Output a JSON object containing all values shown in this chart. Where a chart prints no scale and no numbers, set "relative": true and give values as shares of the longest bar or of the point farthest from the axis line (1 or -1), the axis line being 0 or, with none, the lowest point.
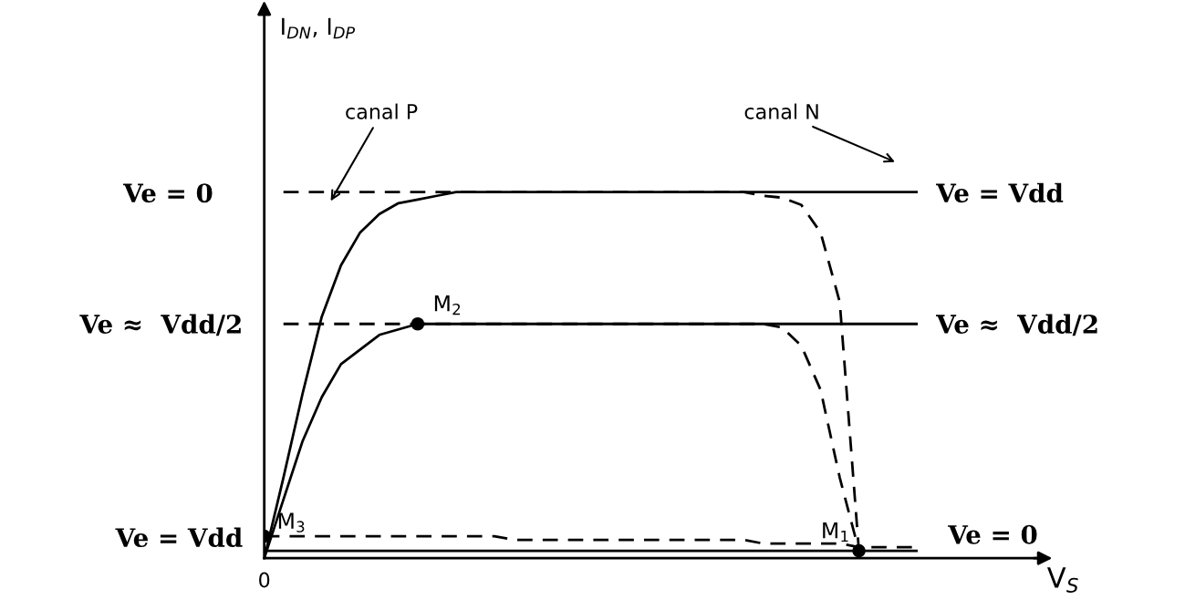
{
  "chart_data": {
    "type": "line",
    "relative": true,
    "xlabel": "V$_{S}$",
    "legend": false,
    "categories": [
      null,
      null,
      null,
      null,
      null,
      null,
      null,
      null,
      null,
      null,
      null,
      null,
      null,
      null,
      null,
      null,
      null,
      null,
      null,
      null,
      null,
      null,
      null,
      null,
      null,
      null,
      null,
      null,
      null,
      null,
      null,
      null,
      null,
      null,
      null,
      null,
      null,
      null,
      null,
      null,
      null
    ],
    "series": [
      {
        "color": "#000000",
        "line_style": "solid",
        "values": [
          0,
          0.22,
          0.45,
          0.66,
          0.8,
          0.89,
          0.94,
          0.97,
          0.98,
          0.99,
          1,
          1,
          1,
          1,
          1,
          1,
          1,
          1,
          1,
          1,
          1,
          1,
          1,
          1,
          1,
          1,
          1,
          1,
          1,
          1,
          1,
          1,
          1,
          1,
          1,
          null,
          null,
          null,
          null,
          null,
          null
        ]
      },
      {
        "color": "#000000",
        "line_style": "dashed",
        "values": [
          null,
          1,
          1,
          1,
          1,
          1,
          1,
          1,
          1,
          1,
          1,
          1,
          1,
          1,
          1,
          1,
          1,
          1,
          1,
          1,
          1,
          1,
          1,
          1,
          1,
          1,
          0.99,
          0.985,
          0.965,
          0.89,
          0.7,
          0.02,
          null,
          null,
          null,
          null,
          null,
          null,
          null,
          null,
          null
        ]
      },
      {
        "color": "#000000",
        "line_style": "solid",
        "values": [
          0,
          0.16,
          0.32,
          0.44,
          0.53,
          0.57,
          0.61,
          0.625,
          0.64,
          0.64,
          0.64,
          0.64,
          0.64,
          0.64,
          0.64,
          0.64,
          0.64,
          0.64,
          0.64,
          0.64,
          0.64,
          0.64,
          0.64,
          0.64,
          0.64,
          0.64,
          0.64,
          0.64,
          0.64,
          0.64,
          0.64,
          0.64,
          0.64,
          0.64,
          0.64,
          null,
          null,
          null,
          null,
          null,
          null
        ]
      },
      {
        "color": "#000000",
        "line_style": "dashed",
        "values": [
          null,
          0.64,
          0.64,
          0.64,
          0.64,
          0.64,
          0.64,
          0.64,
          0.64,
          0.64,
          0.64,
          0.64,
          0.64,
          0.64,
          0.64,
          0.64,
          0.64,
          0.64,
          0.64,
          0.64,
          0.64,
          0.64,
          0.64,
          0.64,
          0.64,
          0.64,
          0.64,
          0.63,
          0.58,
          0.46,
          0.22,
          0.02,
          null,
          null,
          null,
          null,
          null,
          null,
          null,
          null,
          null
        ]
      },
      {
        "color": "#000000",
        "line_style": "dashed",
        "values": [
          0.06,
          0.06,
          0.06,
          0.06,
          0.06,
          0.06,
          0.06,
          0.06,
          0.06,
          0.06,
          0.06,
          0.06,
          0.06,
          0.05,
          0.05,
          0.05,
          0.05,
          0.05,
          0.05,
          0.05,
          0.05,
          0.05,
          0.05,
          0.05,
          0.05,
          0.05,
          0.04,
          0.04,
          0.04,
          0.04,
          0.04,
          0.03,
          0.03,
          0.03,
          0.03,
          null,
          null,
          null,
          null,
          null,
          null
        ]
      },
      {
        "color": "#000000",
        "line_style": "solid",
        "values": [
          0.02,
          0.02,
          0.02,
          0.02,
          0.02,
          0.02,
          0.02,
          0.02,
          0.02,
          0.02,
          0.02,
          0.02,
          0.02,
          0.02,
          0.02,
          0.02,
          0.02,
          0.02,
          0.02,
          0.02,
          0.02,
          0.02,
          0.02,
          0.02,
          0.02,
          0.02,
          0.02,
          0.02,
          0.02,
          0.02,
          0.02,
          0.02,
          0.02,
          0.02,
          0.02,
          null,
          null,
          null,
          null,
          null,
          null
        ]
      },
      {
        "color": "#000000",
        "line_style": "solid",
        "marker": "circle",
        "values": [
          0.06,
          null,
          null,
          null,
          null,
          null,
          null,
          null,
          0.64,
          null,
          null,
          null,
          null,
          null,
          null,
          null,
          null,
          null,
          null,
          null,
          null,
          null,
          null,
          null,
          null,
          null,
          null,
          null,
          null,
          null,
          null,
          0.02,
          null,
          null,
          null,
          null,
          null,
          null,
          null,
          null,
          null
        ]
      }
    ],
    "annotations": [
      "Ve = 0",
      "Ve ≈  Vdd/2",
      "Ve = Vdd",
      "Ve = Vdd",
      "Ve ≈  Vdd/2",
      "Ve = 0",
      "canal P",
      "canal N",
      "0",
      "M$_{3}$",
      "M$_{2}$",
      "M$_{1}$",
      "I$_{DN}$, I$_{DP}$"
    ]
  }
}
